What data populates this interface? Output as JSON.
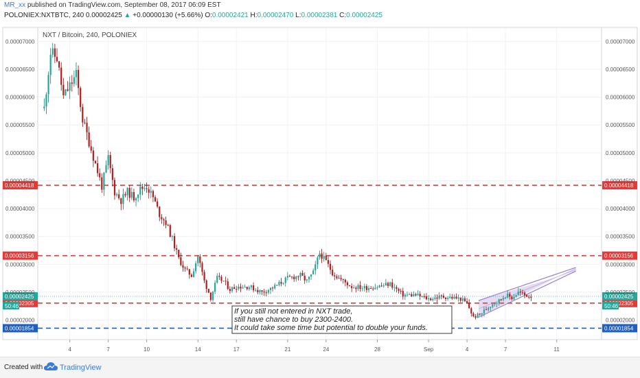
{
  "header": {
    "user": "MR_xx",
    "published": " published on TradingView.com, September 08, 2017 06:09 EST",
    "symbol_info": "POLONIEX:NXTBTC, 240  0.00002425 ",
    "change_arrow": "▲",
    "change": "+0.00000130 (+5.66%)",
    "o_label": " O:",
    "o_value": "0.00002421",
    "h_label": " H:",
    "h_value": "0.00002470",
    "l_label": " L:",
    "l_value": "0.00002381",
    "c_label": " C:",
    "c_value": "0.00002425"
  },
  "footer": {
    "created_with": "Created with",
    "brand": "TradingView"
  },
  "chart_data": {
    "type": "candlestick",
    "title": "NXT / Bitcoin, 240, POLONIEX",
    "y_ticks": [
      "0.00007000",
      "0.00006500",
      "0.00006000",
      "0.00005500",
      "0.00005000",
      "0.00004500",
      "0.00004000",
      "0.00003500",
      "0.00003000",
      "0.00002500",
      "0.00002000"
    ],
    "y_tick_values": [
      7.0,
      6.5,
      6.0,
      5.5,
      5.0,
      4.5,
      4.0,
      3.5,
      3.0,
      2.5,
      2.0
    ],
    "ylim": [
      1.65,
      7.25
    ],
    "y_unit_note": "values ×1e-5 BTC",
    "x_ticks": [
      "4",
      "7",
      "10",
      "14",
      "17",
      "21",
      "24",
      "28",
      "Sep",
      "4",
      "7",
      "11"
    ],
    "x_tick_days": [
      4,
      7,
      10,
      14,
      17,
      21,
      24,
      28,
      32,
      35,
      38,
      42
    ],
    "xlim_days": [
      1.5,
      45.5
    ],
    "x_unit_note": "day of August 2017 (32 = Sep 1)",
    "horizontal_lines": [
      {
        "label": "0.00004418",
        "value": 4.418,
        "color": "#e53935",
        "style": "dashed"
      },
      {
        "label": "0.00003156",
        "value": 3.156,
        "color": "#e53935",
        "style": "dashed"
      },
      {
        "label": "0.00002305",
        "value": 2.305,
        "color": "#e53935",
        "style": "dashed"
      },
      {
        "label": "0.00001854",
        "value": 1.854,
        "color": "#1e5fbf",
        "style": "dashed"
      }
    ],
    "price_line": {
      "label": "0.00002425",
      "value": 2.425,
      "color": "#26a69a",
      "countdown": "50:46"
    },
    "channel": {
      "from_day": 35.9,
      "to_day": 43.5,
      "lower_start": 2.05,
      "lower_end": 2.92,
      "upper_start": 2.35,
      "upper_end": 2.88,
      "color": "#9b7fd1"
    },
    "annotation": {
      "lines": [
        "If you still not entered in NXT trade,",
        " still have chance to buy 2300-2400.",
        "It could take some time but potential to double your funds."
      ]
    },
    "price_path": [
      [
        2.0,
        5.8
      ],
      [
        2.5,
        6.8
      ],
      [
        3.0,
        6.7
      ],
      [
        3.5,
        6.0
      ],
      [
        4.0,
        6.2
      ],
      [
        4.5,
        6.4
      ],
      [
        5.0,
        5.6
      ],
      [
        5.5,
        5.2
      ],
      [
        6.0,
        4.8
      ],
      [
        6.5,
        4.4
      ],
      [
        7.0,
        4.9
      ],
      [
        7.5,
        4.3
      ],
      [
        8.0,
        4.15
      ],
      [
        8.5,
        4.3
      ],
      [
        9.0,
        4.2
      ],
      [
        9.5,
        4.35
      ],
      [
        10.0,
        4.4
      ],
      [
        10.5,
        4.2
      ],
      [
        11.0,
        3.9
      ],
      [
        11.5,
        3.75
      ],
      [
        12.0,
        3.45
      ],
      [
        12.5,
        3.1
      ],
      [
        13.0,
        2.9
      ],
      [
        13.5,
        2.8
      ],
      [
        14.0,
        3.15
      ],
      [
        14.5,
        2.7
      ],
      [
        15.0,
        2.4
      ],
      [
        15.5,
        2.75
      ],
      [
        16.0,
        2.7
      ],
      [
        16.5,
        2.55
      ],
      [
        17.0,
        2.6
      ],
      [
        18.0,
        2.6
      ],
      [
        19.0,
        2.5
      ],
      [
        20.0,
        2.6
      ],
      [
        21.0,
        2.75
      ],
      [
        22.0,
        2.8
      ],
      [
        22.5,
        2.7
      ],
      [
        23.0,
        2.85
      ],
      [
        23.5,
        3.2
      ],
      [
        24.0,
        3.05
      ],
      [
        24.5,
        2.85
      ],
      [
        25.0,
        2.75
      ],
      [
        26.0,
        2.6
      ],
      [
        27.0,
        2.58
      ],
      [
        28.0,
        2.6
      ],
      [
        29.0,
        2.65
      ],
      [
        30.0,
        2.45
      ],
      [
        31.0,
        2.45
      ],
      [
        32.0,
        2.38
      ],
      [
        33.0,
        2.42
      ],
      [
        34.0,
        2.4
      ],
      [
        34.5,
        2.38
      ],
      [
        35.0,
        2.3
      ],
      [
        35.5,
        2.05
      ],
      [
        36.0,
        2.1
      ],
      [
        36.5,
        2.2
      ],
      [
        37.0,
        2.3
      ],
      [
        37.5,
        2.35
      ],
      [
        38.0,
        2.45
      ],
      [
        38.5,
        2.4
      ],
      [
        39.0,
        2.5
      ],
      [
        39.5,
        2.45
      ],
      [
        40.0,
        2.43
      ]
    ]
  }
}
